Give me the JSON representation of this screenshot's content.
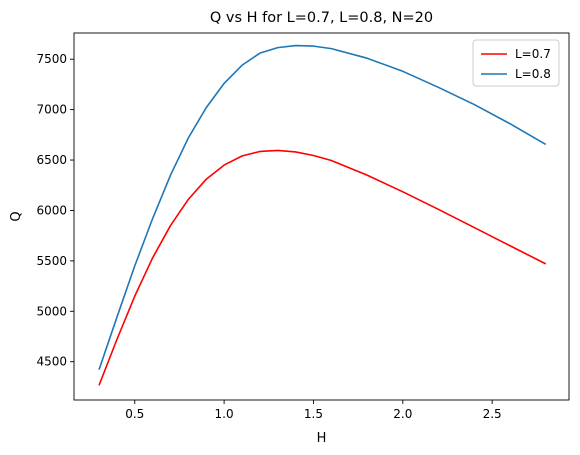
{
  "chart_data": {
    "type": "line",
    "title": "Q vs H for L=0.7, L=0.8, N=20",
    "xlabel": "H",
    "ylabel": "Q",
    "xlim": [
      0.16,
      2.93
    ],
    "ylim": [
      4120,
      7760
    ],
    "xticks": [
      0.5,
      1.0,
      1.5,
      2.0,
      2.5
    ],
    "xtick_labels": [
      "0.5",
      "1.0",
      "1.5",
      "2.0",
      "2.5"
    ],
    "yticks": [
      4500,
      5000,
      5500,
      6000,
      6500,
      7000,
      7500
    ],
    "ytick_labels": [
      "4500",
      "5000",
      "5500",
      "6000",
      "6500",
      "7000",
      "7500"
    ],
    "grid": false,
    "legend_position": "top-right",
    "series": [
      {
        "name": "L=0.7",
        "color": "#ff0000",
        "x": [
          0.3,
          0.4,
          0.5,
          0.6,
          0.7,
          0.8,
          0.9,
          1.0,
          1.1,
          1.2,
          1.3,
          1.4,
          1.5,
          1.6,
          1.8,
          2.0,
          2.2,
          2.4,
          2.6,
          2.8
        ],
        "y": [
          4265,
          4720,
          5150,
          5530,
          5850,
          6110,
          6310,
          6450,
          6540,
          6585,
          6595,
          6580,
          6545,
          6495,
          6350,
          6185,
          6010,
          5830,
          5650,
          5470
        ]
      },
      {
        "name": "L=0.8",
        "color": "#1f77b4",
        "x": [
          0.3,
          0.4,
          0.5,
          0.6,
          0.7,
          0.8,
          0.9,
          1.0,
          1.1,
          1.2,
          1.3,
          1.4,
          1.5,
          1.6,
          1.8,
          2.0,
          2.2,
          2.4,
          2.6,
          2.8
        ],
        "y": [
          4420,
          4940,
          5450,
          5920,
          6350,
          6720,
          7020,
          7260,
          7440,
          7560,
          7615,
          7635,
          7630,
          7605,
          7510,
          7380,
          7220,
          7050,
          6860,
          6655
        ]
      }
    ]
  }
}
